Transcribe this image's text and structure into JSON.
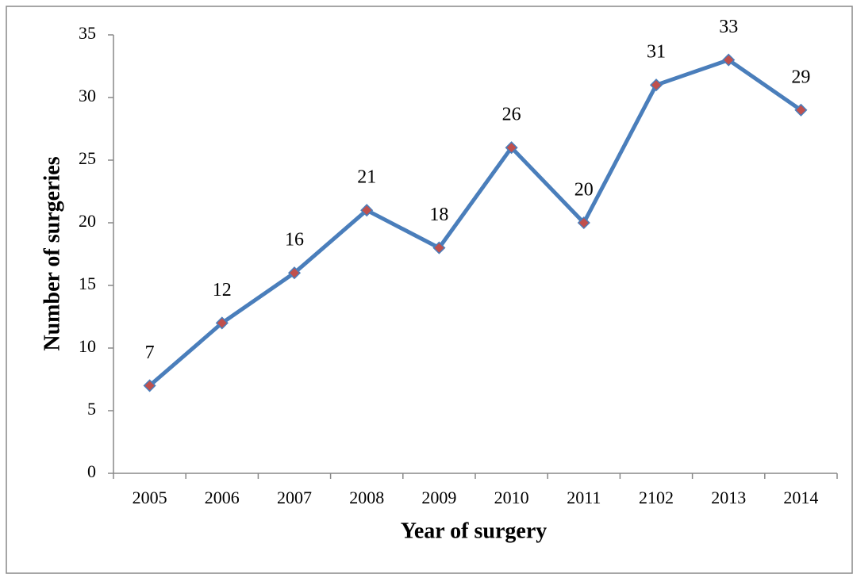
{
  "chart_data": {
    "type": "line",
    "x_label": "Year of surgery",
    "y_label": "Number of surgeries",
    "categories": [
      "2005",
      "2006",
      "2007",
      "2008",
      "2009",
      "2010",
      "2011",
      "2102",
      "2013",
      "2014"
    ],
    "series": [
      {
        "color": "#4a7ebb",
        "marker_color": "#c0504d",
        "values": [
          7,
          12,
          16,
          21,
          18,
          26,
          20,
          31,
          33,
          29
        ]
      }
    ],
    "ylim": [
      0,
      35
    ],
    "yticks": [
      0,
      5,
      10,
      15,
      20,
      25,
      30,
      35
    ],
    "grid": false
  }
}
